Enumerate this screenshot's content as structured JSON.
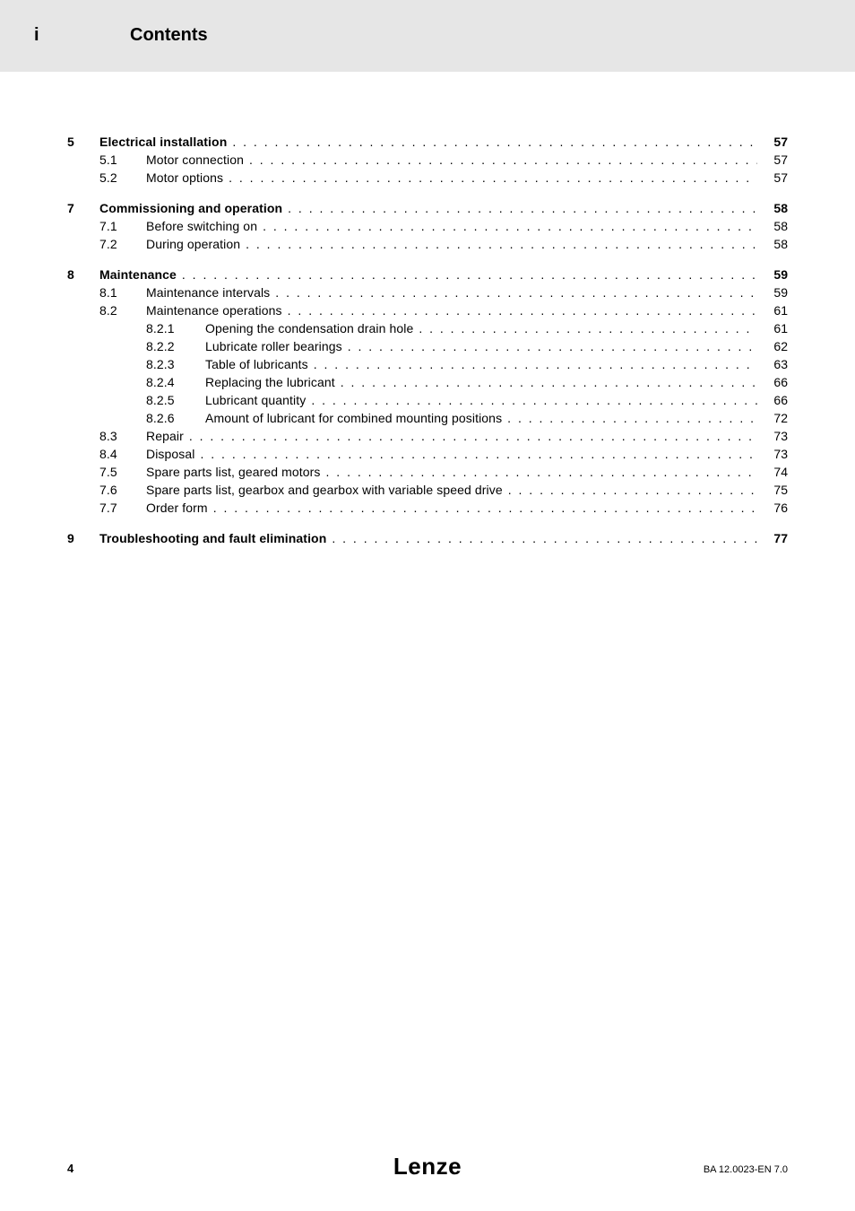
{
  "header": {
    "marker": "i",
    "title": "Contents"
  },
  "toc": [
    {
      "type": "l1",
      "num": "5",
      "label": "Electrical installation",
      "page": "57",
      "bold": true,
      "block": true
    },
    {
      "type": "l2",
      "num": "5.1",
      "label": "Motor connection",
      "page": "57"
    },
    {
      "type": "l2",
      "num": "5.2",
      "label": "Motor options",
      "page": "57"
    },
    {
      "type": "l1",
      "num": "7",
      "label": "Commissioning and operation",
      "page": "58",
      "bold": true,
      "block": true
    },
    {
      "type": "l2",
      "num": "7.1",
      "label": "Before switching on",
      "page": "58"
    },
    {
      "type": "l2",
      "num": "7.2",
      "label": "During operation",
      "page": "58"
    },
    {
      "type": "l1",
      "num": "8",
      "label": "Maintenance",
      "page": "59",
      "bold": true,
      "block": true
    },
    {
      "type": "l2",
      "num": "8.1",
      "label": "Maintenance intervals",
      "page": "59"
    },
    {
      "type": "l2",
      "num": "8.2",
      "label": "Maintenance operations",
      "page": "61"
    },
    {
      "type": "l3",
      "num": "8.2.1",
      "label": "Opening the condensation drain hole",
      "page": "61"
    },
    {
      "type": "l3",
      "num": "8.2.2",
      "label": "Lubricate roller bearings",
      "page": "62"
    },
    {
      "type": "l3",
      "num": "8.2.3",
      "label": "Table of lubricants",
      "page": "63"
    },
    {
      "type": "l3",
      "num": "8.2.4",
      "label": "Replacing the lubricant",
      "page": "66"
    },
    {
      "type": "l3",
      "num": "8.2.5",
      "label": "Lubricant quantity",
      "page": "66"
    },
    {
      "type": "l3",
      "num": "8.2.6",
      "label": "Amount of lubricant for combined mounting positions",
      "page": "72"
    },
    {
      "type": "l2",
      "num": "8.3",
      "label": "Repair",
      "page": "73"
    },
    {
      "type": "l2",
      "num": "8.4",
      "label": "Disposal",
      "page": "73"
    },
    {
      "type": "l2",
      "num": "7.5",
      "label": "Spare parts list, geared motors",
      "page": "74"
    },
    {
      "type": "l2",
      "num": "7.6",
      "label": "Spare parts list, gearbox and gearbox with variable speed drive",
      "page": "75"
    },
    {
      "type": "l2",
      "num": "7.7",
      "label": "Order form",
      "page": "76"
    },
    {
      "type": "l1",
      "num": "9",
      "label": "Troubleshooting and fault elimination",
      "page": "77",
      "bold": true,
      "block": true
    }
  ],
  "footer": {
    "page": "4",
    "logo": "Lenze",
    "code": "BA 12.0023-EN   7.0"
  }
}
